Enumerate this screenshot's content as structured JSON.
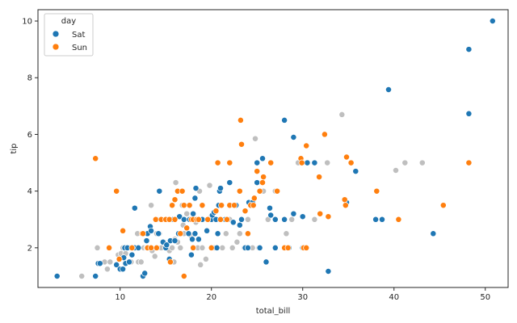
{
  "chart_data": {
    "type": "scatter",
    "title": "",
    "xlabel": "total_bill",
    "ylabel": "tip",
    "xlim": [
      1,
      52.5
    ],
    "ylim": [
      0.6,
      10.4
    ],
    "xticks": [
      10,
      20,
      30,
      40,
      50
    ],
    "yticks": [
      2,
      4,
      6,
      8,
      10
    ],
    "grid": false,
    "legend": {
      "title": "day",
      "position": "top-left"
    },
    "colors": {
      "Sat": "#1f77b4",
      "Sun": "#ff7f0e",
      "other": "#bfbfbf"
    },
    "series": [
      {
        "name": "Sat",
        "color": "#1f77b4",
        "points": [
          [
            3.1,
            1.0
          ],
          [
            7.3,
            1.0
          ],
          [
            7.6,
            1.45
          ],
          [
            7.8,
            1.45
          ],
          [
            9.6,
            1.4
          ],
          [
            10.0,
            1.25
          ],
          [
            10.3,
            1.25
          ],
          [
            10.4,
            1.65
          ],
          [
            10.5,
            2.0
          ],
          [
            10.6,
            1.45
          ],
          [
            10.8,
            2.0
          ],
          [
            11.0,
            1.5
          ],
          [
            11.3,
            1.75
          ],
          [
            11.6,
            2.0
          ],
          [
            11.6,
            3.4
          ],
          [
            12.0,
            2.0
          ],
          [
            12.5,
            1.0
          ],
          [
            12.7,
            1.1
          ],
          [
            12.9,
            2.25
          ],
          [
            13.0,
            2.5
          ],
          [
            13.0,
            2.0
          ],
          [
            13.3,
            2.75
          ],
          [
            13.4,
            2.6
          ],
          [
            14.0,
            3.0
          ],
          [
            14.2,
            2.5
          ],
          [
            14.3,
            4.0
          ],
          [
            14.7,
            2.2
          ],
          [
            15.0,
            2.0
          ],
          [
            15.1,
            2.1
          ],
          [
            15.4,
            1.6
          ],
          [
            15.5,
            2.25
          ],
          [
            15.8,
            3.0
          ],
          [
            16.0,
            2.25
          ],
          [
            16.4,
            2.5
          ],
          [
            16.5,
            3.1
          ],
          [
            17.0,
            3.0
          ],
          [
            17.5,
            2.5
          ],
          [
            17.6,
            3.0
          ],
          [
            17.8,
            1.75
          ],
          [
            17.9,
            2.3
          ],
          [
            18.0,
            3.2
          ],
          [
            18.2,
            3.75
          ],
          [
            18.2,
            2.5
          ],
          [
            18.3,
            4.1
          ],
          [
            18.6,
            2.3
          ],
          [
            19.0,
            3.0
          ],
          [
            19.5,
            2.6
          ],
          [
            20.0,
            3.0
          ],
          [
            20.1,
            3.15
          ],
          [
            20.3,
            3.25
          ],
          [
            20.5,
            3.0
          ],
          [
            20.6,
            2.0
          ],
          [
            20.7,
            2.5
          ],
          [
            20.8,
            3.5
          ],
          [
            20.9,
            4.0
          ],
          [
            21.0,
            4.1
          ],
          [
            21.5,
            3.0
          ],
          [
            22.0,
            4.3
          ],
          [
            22.4,
            2.9
          ],
          [
            22.7,
            3.5
          ],
          [
            23.1,
            2.8
          ],
          [
            23.3,
            3.0
          ],
          [
            23.7,
            2.0
          ],
          [
            24.0,
            2.0
          ],
          [
            24.1,
            3.6
          ],
          [
            24.5,
            3.6
          ],
          [
            25.0,
            4.3
          ],
          [
            25.0,
            5.0
          ],
          [
            25.3,
            2.0
          ],
          [
            25.6,
            5.15
          ],
          [
            26.0,
            1.5
          ],
          [
            26.4,
            3.4
          ],
          [
            26.5,
            3.15
          ],
          [
            27.0,
            2.0
          ],
          [
            27.0,
            3.0
          ],
          [
            27.2,
            4.0
          ],
          [
            28.0,
            3.0
          ],
          [
            28.0,
            6.5
          ],
          [
            28.5,
            2.0
          ],
          [
            29.0,
            5.9
          ],
          [
            29.0,
            3.2
          ],
          [
            30.0,
            3.1
          ],
          [
            30.0,
            2.0
          ],
          [
            30.5,
            5.0
          ],
          [
            31.3,
            5.0
          ],
          [
            32.8,
            1.17
          ],
          [
            34.8,
            3.6
          ],
          [
            35.3,
            5.0
          ],
          [
            35.8,
            4.7
          ],
          [
            38.0,
            3.0
          ],
          [
            38.7,
            3.0
          ],
          [
            39.4,
            7.58
          ],
          [
            44.3,
            2.5
          ],
          [
            48.2,
            9.0
          ],
          [
            48.2,
            6.73
          ],
          [
            50.8,
            10.0
          ]
        ]
      },
      {
        "name": "Sun",
        "color": "#ff7f0e",
        "points": [
          [
            7.3,
            5.15
          ],
          [
            8.8,
            2.0
          ],
          [
            9.6,
            4.0
          ],
          [
            9.9,
            1.6
          ],
          [
            10.3,
            2.6
          ],
          [
            11.3,
            2.0
          ],
          [
            12.4,
            2.5
          ],
          [
            12.5,
            2.5
          ],
          [
            13.0,
            2.0
          ],
          [
            13.4,
            2.0
          ],
          [
            13.9,
            3.0
          ],
          [
            14.0,
            2.0
          ],
          [
            14.5,
            3.0
          ],
          [
            15.0,
            3.0
          ],
          [
            15.4,
            3.0
          ],
          [
            15.5,
            1.5
          ],
          [
            15.7,
            3.5
          ],
          [
            16.0,
            3.0
          ],
          [
            16.0,
            3.7
          ],
          [
            16.3,
            4.0
          ],
          [
            16.6,
            2.5
          ],
          [
            16.8,
            4.0
          ],
          [
            17.0,
            1.0
          ],
          [
            17.0,
            3.5
          ],
          [
            17.3,
            2.7
          ],
          [
            17.6,
            3.5
          ],
          [
            17.8,
            3.0
          ],
          [
            18.0,
            2.0
          ],
          [
            18.0,
            3.0
          ],
          [
            18.4,
            3.0
          ],
          [
            18.6,
            3.0
          ],
          [
            19.0,
            3.5
          ],
          [
            19.6,
            3.0
          ],
          [
            20.0,
            2.0
          ],
          [
            20.5,
            3.3
          ],
          [
            20.7,
            5.0
          ],
          [
            21.0,
            3.0
          ],
          [
            21.1,
            3.5
          ],
          [
            21.7,
            3.0
          ],
          [
            22.0,
            3.5
          ],
          [
            22.0,
            5.0
          ],
          [
            22.5,
            3.5
          ],
          [
            23.1,
            4.0
          ],
          [
            23.2,
            6.5
          ],
          [
            23.3,
            5.65
          ],
          [
            23.7,
            3.3
          ],
          [
            24.0,
            2.5
          ],
          [
            24.3,
            3.5
          ],
          [
            24.6,
            3.5
          ],
          [
            24.7,
            3.75
          ],
          [
            25.0,
            4.7
          ],
          [
            25.3,
            4.0
          ],
          [
            25.6,
            4.3
          ],
          [
            25.7,
            4.5
          ],
          [
            26.5,
            5.0
          ],
          [
            27.2,
            4.0
          ],
          [
            28.0,
            2.0
          ],
          [
            28.4,
            2.0
          ],
          [
            29.8,
            5.15
          ],
          [
            29.9,
            5.0
          ],
          [
            30.1,
            2.0
          ],
          [
            30.4,
            2.0
          ],
          [
            30.4,
            5.6
          ],
          [
            31.8,
            4.5
          ],
          [
            31.9,
            3.2
          ],
          [
            32.4,
            6.0
          ],
          [
            32.8,
            3.1
          ],
          [
            34.6,
            3.7
          ],
          [
            34.7,
            3.5
          ],
          [
            34.8,
            5.2
          ],
          [
            35.3,
            5.0
          ],
          [
            38.1,
            4.0
          ],
          [
            40.5,
            3.0
          ],
          [
            45.4,
            3.5
          ],
          [
            48.2,
            5.0
          ]
        ]
      },
      {
        "name": "",
        "color": "#bfbfbf",
        "points": [
          [
            5.8,
            1.0
          ],
          [
            7.5,
            2.0
          ],
          [
            8.3,
            1.5
          ],
          [
            8.6,
            1.25
          ],
          [
            8.9,
            1.5
          ],
          [
            9.8,
            1.75
          ],
          [
            10.1,
            1.8
          ],
          [
            10.3,
            2.0
          ],
          [
            10.6,
            1.8
          ],
          [
            11.0,
            2.0
          ],
          [
            11.2,
            1.5
          ],
          [
            11.6,
            2.0
          ],
          [
            11.9,
            2.5
          ],
          [
            12.0,
            1.5
          ],
          [
            12.3,
            1.5
          ],
          [
            12.6,
            2.0
          ],
          [
            12.9,
            2.0
          ],
          [
            13.1,
            2.0
          ],
          [
            13.4,
            3.5
          ],
          [
            13.8,
            1.7
          ],
          [
            13.9,
            2.0
          ],
          [
            14.1,
            2.0
          ],
          [
            14.3,
            2.5
          ],
          [
            14.5,
            2.0
          ],
          [
            14.8,
            2.2
          ],
          [
            15.0,
            2.0
          ],
          [
            15.1,
            3.0
          ],
          [
            15.4,
            1.9
          ],
          [
            15.7,
            2.0
          ],
          [
            15.9,
            1.5
          ],
          [
            16.0,
            2.3
          ],
          [
            16.3,
            2.2
          ],
          [
            16.5,
            2.5
          ],
          [
            16.6,
            2.0
          ],
          [
            16.8,
            3.5
          ],
          [
            17.0,
            2.5
          ],
          [
            17.3,
            3.2
          ],
          [
            17.5,
            2.5
          ],
          [
            17.8,
            2.4
          ],
          [
            18.0,
            2.0
          ],
          [
            18.3,
            2.9
          ],
          [
            18.5,
            2.0
          ],
          [
            18.8,
            1.4
          ],
          [
            19.0,
            2.0
          ],
          [
            19.4,
            1.6
          ],
          [
            19.6,
            3.0
          ],
          [
            20.0,
            3.1
          ],
          [
            20.3,
            2.0
          ],
          [
            20.5,
            3.0
          ],
          [
            20.9,
            3.5
          ],
          [
            21.2,
            2.0
          ],
          [
            21.6,
            2.5
          ],
          [
            22.0,
            3.0
          ],
          [
            22.3,
            2.0
          ],
          [
            22.8,
            2.2
          ],
          [
            23.1,
            2.5
          ],
          [
            23.6,
            2.0
          ],
          [
            24.0,
            3.0
          ],
          [
            24.5,
            2.0
          ],
          [
            24.8,
            5.85
          ],
          [
            25.2,
            2.0
          ],
          [
            25.7,
            4.0
          ],
          [
            26.2,
            3.0
          ],
          [
            27.0,
            4.0
          ],
          [
            28.2,
            2.5
          ],
          [
            28.8,
            3.0
          ],
          [
            29.5,
            5.0
          ],
          [
            30.0,
            5.0
          ],
          [
            31.3,
            3.0
          ],
          [
            32.7,
            5.0
          ],
          [
            34.3,
            6.7
          ],
          [
            40.2,
            4.73
          ],
          [
            41.2,
            5.0
          ],
          [
            43.1,
            5.0
          ],
          [
            14.0,
            2.5
          ],
          [
            16.1,
            4.3
          ],
          [
            16.9,
            2.8
          ],
          [
            18.7,
            4.0
          ],
          [
            19.8,
            4.2
          ],
          [
            13.5,
            1.9
          ]
        ]
      }
    ]
  }
}
